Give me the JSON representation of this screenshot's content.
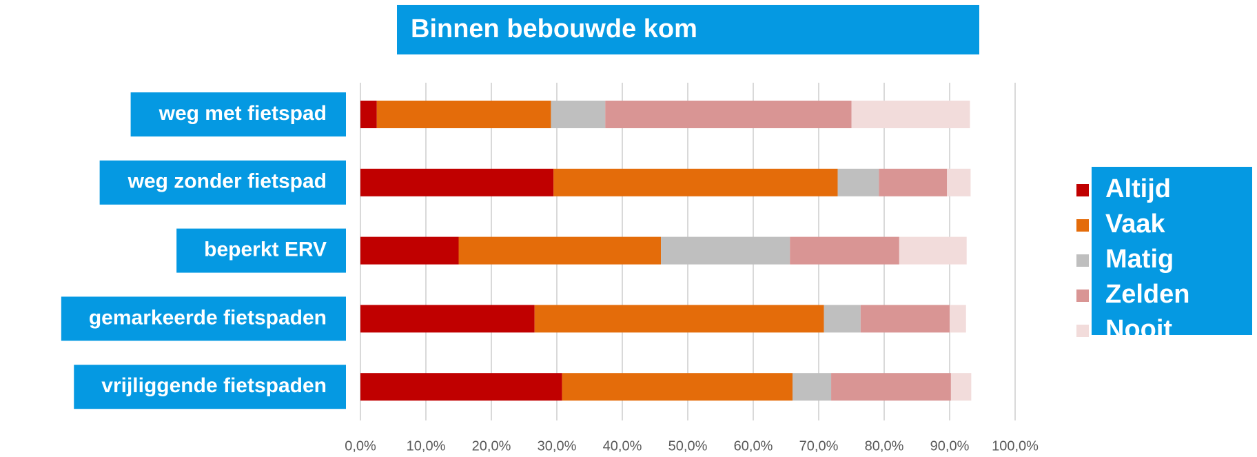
{
  "chart_data": {
    "type": "stacked-barh",
    "title": "Binnen bebouwde kom",
    "categories": [
      "weg met fietspad",
      "weg zonder fietspad",
      "beperkt ERV",
      "gemarkeerde fietspaden",
      "vrijliggende fietspaden"
    ],
    "series": [
      {
        "name": "Altijd",
        "color": "#c00000",
        "values": [
          2.5,
          29.5,
          15.0,
          26.6,
          30.8
        ]
      },
      {
        "name": "Vaak",
        "color": "#e46c0a",
        "values": [
          26.6,
          43.4,
          30.9,
          44.2,
          35.2
        ]
      },
      {
        "name": "Matig",
        "color": "#bfbfbf",
        "values": [
          8.3,
          6.3,
          19.7,
          5.6,
          5.9
        ]
      },
      {
        "name": "Zelden",
        "color": "#d99594",
        "values": [
          37.6,
          10.4,
          16.7,
          13.6,
          18.3
        ]
      },
      {
        "name": "Nooit",
        "color": "#f2dcdb",
        "values": [
          18.1,
          3.6,
          10.3,
          2.5,
          3.1
        ]
      }
    ],
    "xlim": [
      0,
      100
    ],
    "xticks": [
      {
        "value": 0,
        "label": "0,0%"
      },
      {
        "value": 10,
        "label": "10,0%"
      },
      {
        "value": 20,
        "label": "20,0%"
      },
      {
        "value": 30,
        "label": "30,0%"
      },
      {
        "value": 40,
        "label": "40,0%"
      },
      {
        "value": 50,
        "label": "50,0%"
      },
      {
        "value": 60,
        "label": "60,0%"
      },
      {
        "value": 70,
        "label": "70,0%"
      },
      {
        "value": 80,
        "label": "80,0%"
      },
      {
        "value": 90,
        "label": "90,0%"
      },
      {
        "value": 100,
        "label": "100,0%"
      }
    ],
    "grid": true,
    "legend": "right"
  }
}
